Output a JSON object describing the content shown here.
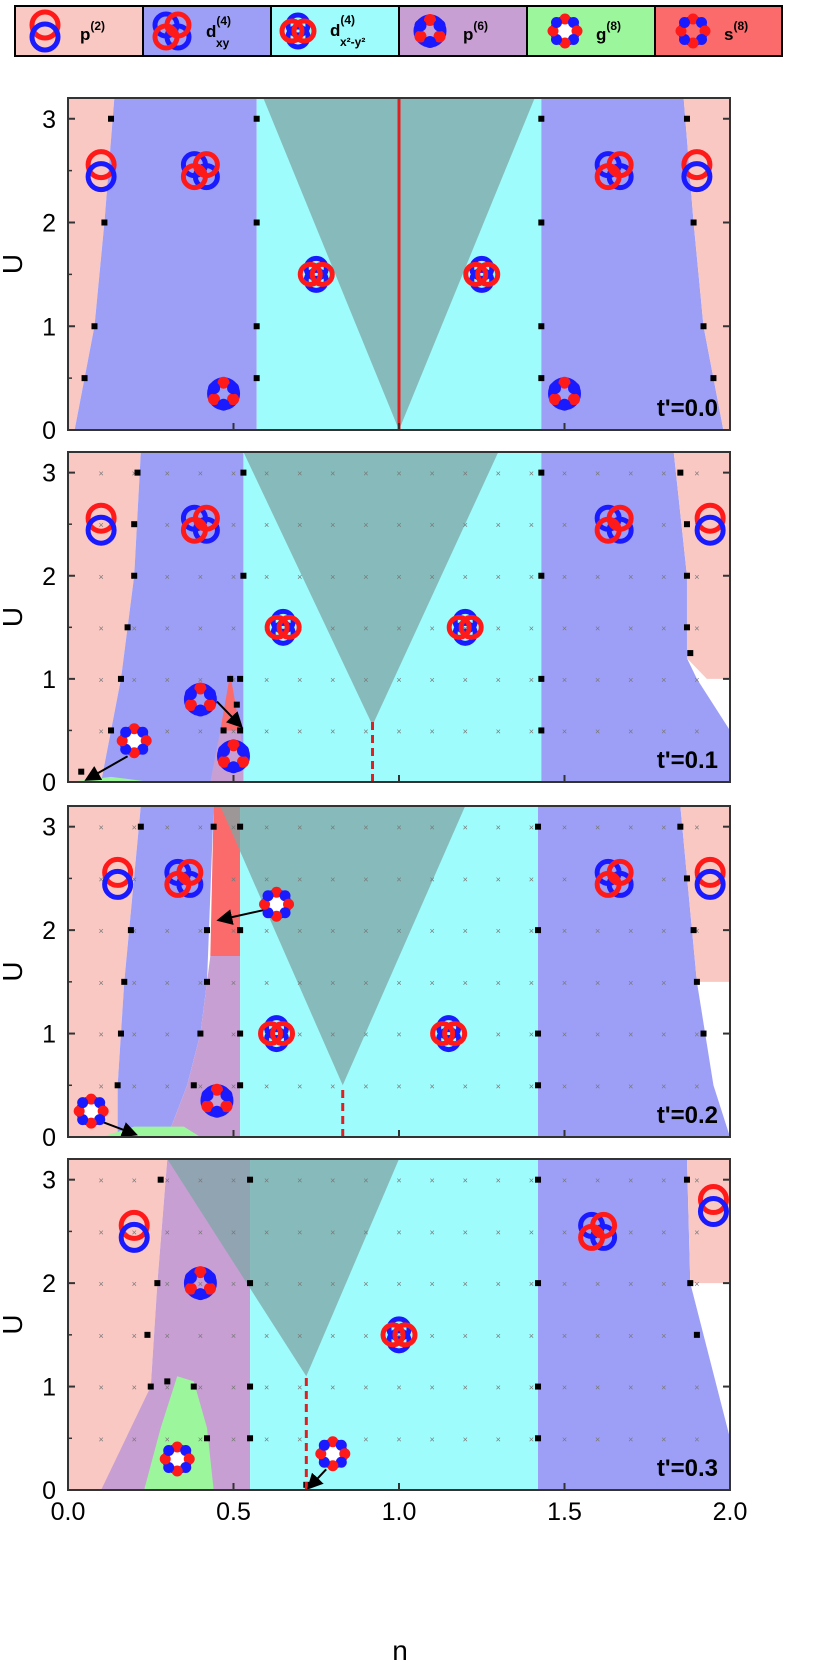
{
  "legend": {
    "items": [
      {
        "base": "p",
        "sup": "(2)",
        "sub": "",
        "color": "#f9c8c3",
        "icon": "p-wave-orbital-icon"
      },
      {
        "base": "d",
        "sup": "(4)",
        "sub": "xy",
        "color": "#9d9ff7",
        "icon": "dxy-wave-orbital-icon"
      },
      {
        "base": "d",
        "sup": "(4)",
        "sub": "x²-y²",
        "color": "#9ffcfc",
        "icon": "dx2y2-wave-orbital-icon"
      },
      {
        "base": "p",
        "sup": "(6)",
        "sub": "",
        "color": "#c89fd3",
        "icon": "p6-wave-orbital-icon"
      },
      {
        "base": "g",
        "sup": "(8)",
        "sub": "",
        "color": "#9cf79c",
        "icon": "g-wave-orbital-icon"
      },
      {
        "base": "s",
        "sup": "(8)",
        "sub": "",
        "color": "#fb6b6b",
        "icon": "s-wave-orbital-icon"
      }
    ]
  },
  "colors": {
    "p2": "#f9c8c3",
    "dxy": "#9d9ff7",
    "dx2y2": "#9ffcfc",
    "p6": "#c89fd3",
    "g8": "#9cf79c",
    "s8": "#fb6b6b",
    "cone": "#7fa5a5",
    "orbital_red": "#ff1a1a",
    "orbital_blue": "#1a1aff",
    "line_red": "#e02020"
  },
  "chart_data": [
    {
      "type": "area",
      "panel_label": "t'=0.0",
      "xlim": [
        0,
        2
      ],
      "ylim": [
        0,
        3.2
      ],
      "ylabel": "U",
      "yticks": [
        "0",
        "1",
        "2",
        "3"
      ],
      "half_filling_line": {
        "x": 1.0,
        "style": "solid"
      },
      "phase_boundaries": {
        "p2_dxy": [
          [
            0.02,
            0
          ],
          [
            0.05,
            0.5
          ],
          [
            0.08,
            1
          ],
          [
            0.11,
            2
          ],
          [
            0.13,
            3.2
          ]
        ],
        "dxy_dx2y2": [
          [
            0.56,
            0
          ],
          [
            0.57,
            0.5
          ],
          [
            0.57,
            1
          ],
          [
            0.57,
            2
          ],
          [
            0.57,
            3.1
          ],
          [
            0.57,
            3.2
          ]
        ],
        "cone": [
          [
            1.0,
            0
          ],
          [
            0.59,
            3.2
          ],
          [
            1.41,
            3.2
          ]
        ]
      }
    },
    {
      "type": "area",
      "panel_label": "t'=0.1",
      "xlim": [
        0,
        2
      ],
      "ylim": [
        0,
        3.2
      ],
      "ylabel": "U",
      "yticks": [
        "0",
        "1",
        "2",
        "3"
      ],
      "half_filling_line": {
        "x": 0.92,
        "style": "dashed"
      },
      "phase_boundaries": {
        "p2_dxy": [
          [
            0.1,
            0
          ],
          [
            0.13,
            0.5
          ],
          [
            0.16,
            1
          ],
          [
            0.2,
            2
          ],
          [
            0.22,
            3.2
          ]
        ],
        "dxy_dx2y2": [
          [
            0.52,
            0
          ],
          [
            0.52,
            1
          ],
          [
            0.53,
            2
          ],
          [
            0.53,
            3.2
          ]
        ],
        "cone": [
          [
            0.92,
            0.6
          ],
          [
            0.53,
            3.2
          ],
          [
            1.3,
            3.2
          ]
        ]
      }
    },
    {
      "type": "area",
      "panel_label": "t'=0.2",
      "xlim": [
        0,
        2
      ],
      "ylim": [
        0,
        3.2
      ],
      "ylabel": "U",
      "yticks": [
        "0",
        "1",
        "2",
        "3"
      ],
      "half_filling_line": {
        "x": 0.83,
        "style": "dashed"
      },
      "phase_boundaries": {
        "p2_dxy": [
          [
            0.15,
            0
          ],
          [
            0.16,
            1
          ],
          [
            0.22,
            3.2
          ]
        ],
        "dxy_dx2y2": [
          [
            0.52,
            0
          ],
          [
            0.52,
            3.2
          ]
        ],
        "cone": [
          [
            0.83,
            0.5
          ],
          [
            0.46,
            3.2
          ],
          [
            1.2,
            3.2
          ]
        ]
      }
    },
    {
      "type": "area",
      "panel_label": "t'=0.3",
      "xlim": [
        0,
        2
      ],
      "ylim": [
        0,
        3.2
      ],
      "xlabel": "n",
      "ylabel": "U",
      "xticks": [
        "0.0",
        "0.5",
        "1.0",
        "1.5",
        "2.0"
      ],
      "yticks": [
        "0",
        "1",
        "2",
        "3"
      ],
      "half_filling_line": {
        "x": 0.72,
        "style": "dashed"
      },
      "phase_boundaries": {
        "p2_p6": [
          [
            0.1,
            0
          ],
          [
            0.25,
            1
          ],
          [
            0.3,
            3.2
          ]
        ],
        "p6_dx2y2": [
          [
            0.55,
            0
          ],
          [
            0.55,
            3.2
          ]
        ],
        "cone": [
          [
            0.72,
            1.1
          ],
          [
            0.3,
            3.2
          ],
          [
            1.0,
            3.2
          ]
        ]
      }
    }
  ]
}
